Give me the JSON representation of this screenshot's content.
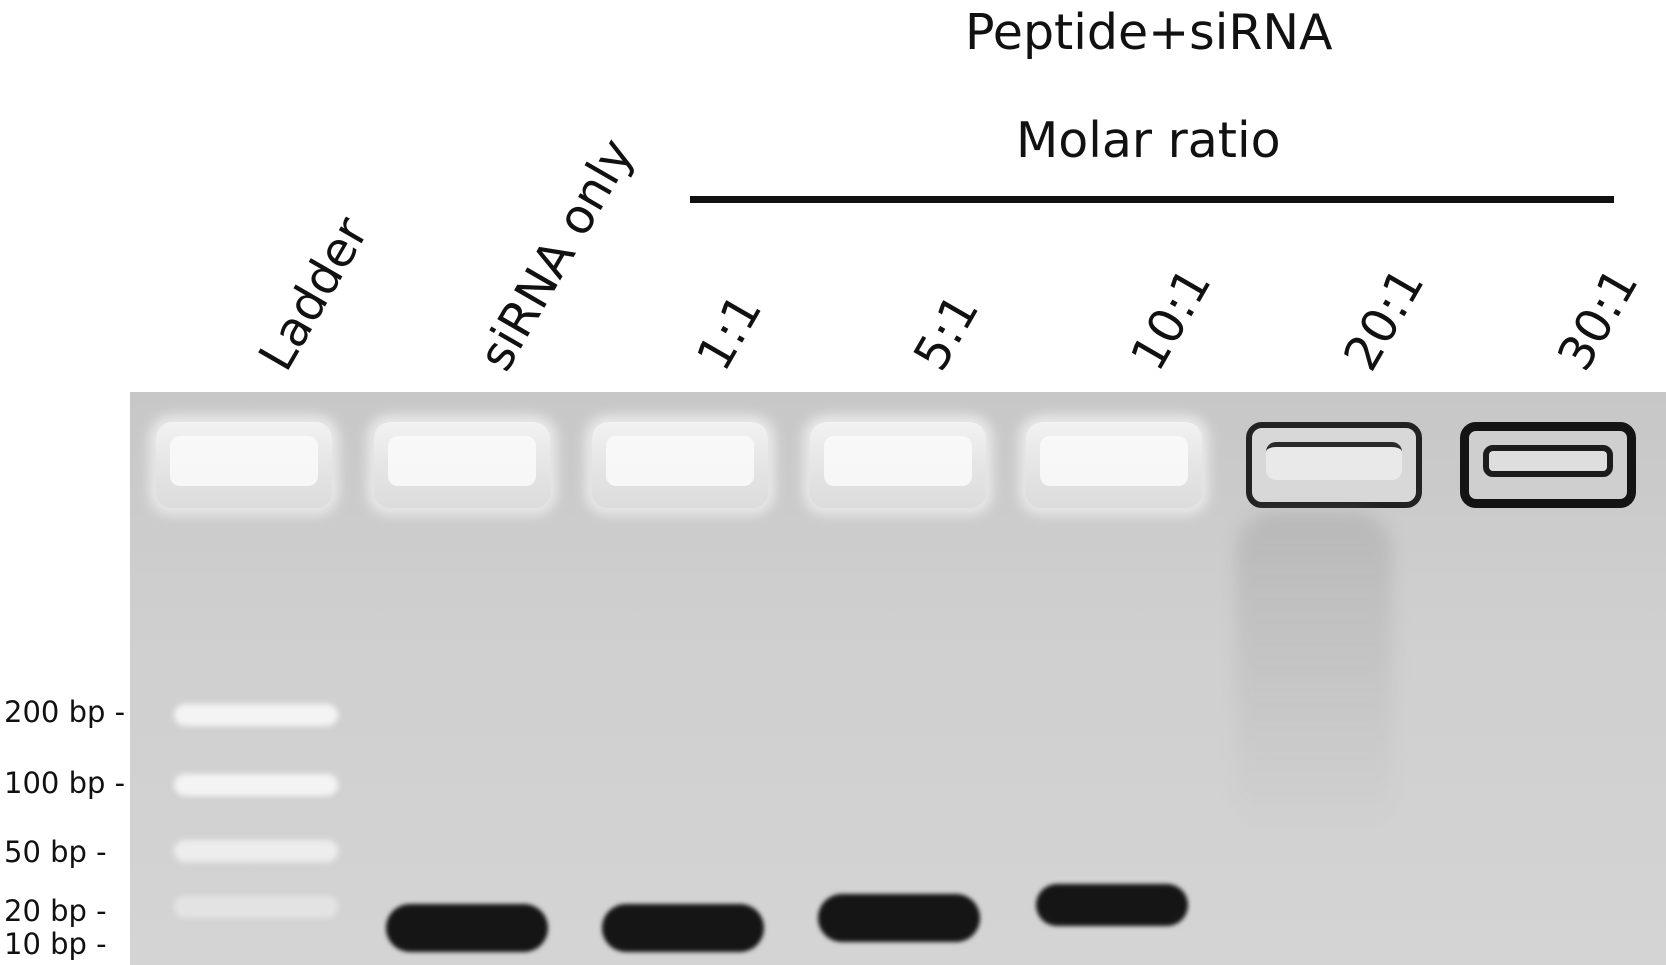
{
  "header": {
    "title": "Peptide+siRNA",
    "subtitle": "Molar ratio"
  },
  "lanes": [
    {
      "label": "Ladder"
    },
    {
      "label": "siRNA only"
    },
    {
      "label": "1:1"
    },
    {
      "label": "5:1"
    },
    {
      "label": "10:1"
    },
    {
      "label": "20:1"
    },
    {
      "label": "30:1"
    }
  ],
  "size_markers": [
    "200 bp -",
    "100 bp -",
    "50 bp   -",
    "20 bp   -",
    "10 bp  -"
  ],
  "colors": {
    "gel_background": "#cfcfcf",
    "band": "#151515",
    "ladder_band": "#f4f4f4",
    "text": "#111111"
  }
}
